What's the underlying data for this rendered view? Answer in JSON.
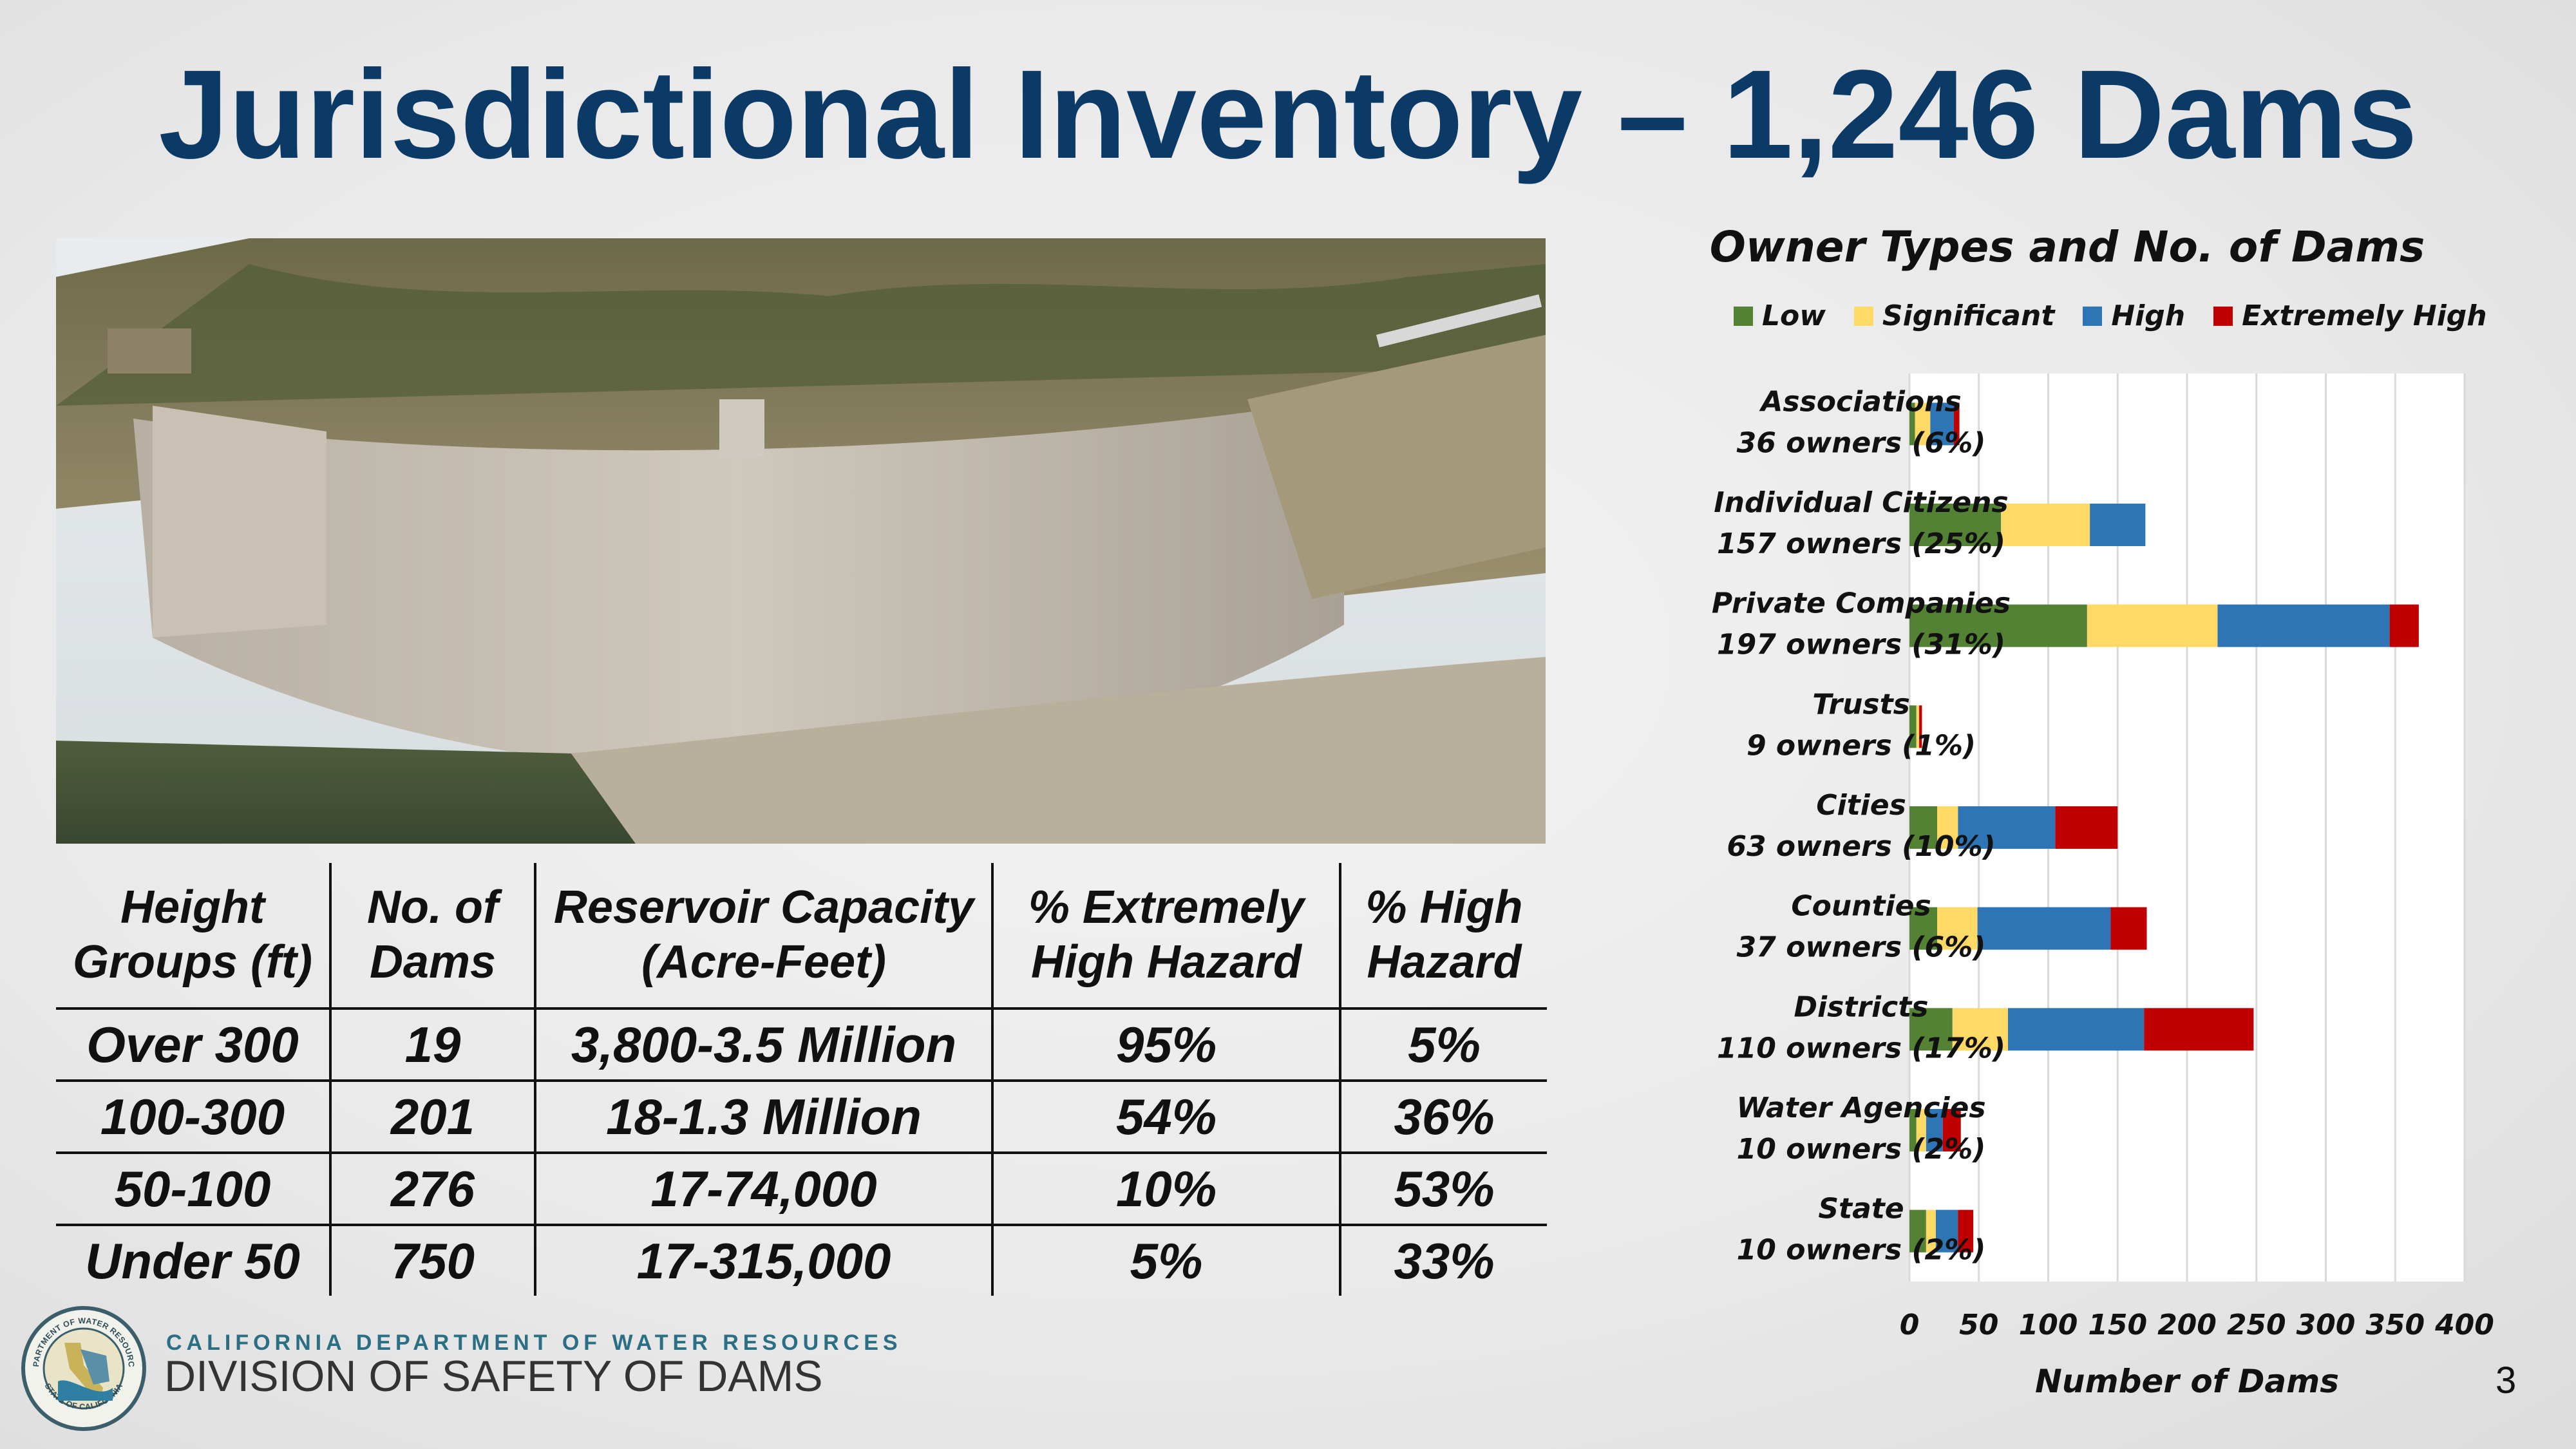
{
  "slide": {
    "title": "Jurisdictional Inventory – 1,246 Dams",
    "number": "3"
  },
  "photo": {
    "description_icon": "concrete-arch-dam-photo"
  },
  "table": {
    "headers": [
      "Height Groups (ft)",
      "No. of Dams",
      "Reservoir Capacity (Acre-Feet)",
      "% Extremely High Hazard",
      "% High Hazard"
    ],
    "rows": [
      [
        "Over 300",
        "19",
        "3,800-3.5 Million",
        "95%",
        "5%"
      ],
      [
        "100-300",
        "201",
        "18-1.3 Million",
        "54%",
        "36%"
      ],
      [
        "50-100",
        "276",
        "17-74,000",
        "10%",
        "53%"
      ],
      [
        "Under 50",
        "750",
        "17-315,000",
        "5%",
        "33%"
      ]
    ]
  },
  "footer": {
    "org_line1": "CALIFORNIA DEPARTMENT OF WATER RESOURCES",
    "org_line2": "DIVISION OF SAFETY OF DAMS",
    "seal_text_top": "DEPARTMENT OF WATER RESOURCES",
    "seal_text_bottom": "STATE OF CALIFORNIA"
  },
  "chart_data": {
    "type": "bar",
    "orientation": "horizontal",
    "stacked": true,
    "title": "Owner Types and No. of Dams",
    "xlabel": "Number of Dams",
    "ylabel": "",
    "xlim": [
      0,
      400
    ],
    "xticks": [
      0,
      50,
      100,
      150,
      200,
      250,
      300,
      350,
      400
    ],
    "grid": "vertical",
    "legend_position": "top",
    "categories": [
      [
        "Associations",
        "36 owners (6%)"
      ],
      [
        "Individual Citizens",
        "157 owners (25%)"
      ],
      [
        "Private Companies",
        "197 owners (31%)"
      ],
      [
        "Trusts",
        "9 owners (1%)"
      ],
      [
        "Cities",
        "63 owners (10%)"
      ],
      [
        "Counties",
        "37 owners (6%)"
      ],
      [
        "Districts",
        "110 owners (17%)"
      ],
      [
        "Water Agencies",
        "10 owners (2%)"
      ],
      [
        "State",
        "10 owners (2%)"
      ]
    ],
    "series": [
      {
        "name": "Low",
        "color": "#548235",
        "values": [
          4,
          66,
          128,
          5,
          20,
          20,
          31,
          5,
          12
        ]
      },
      {
        "name": "Significant",
        "color": "#ffd966",
        "values": [
          11,
          64,
          94,
          2,
          15,
          29,
          40,
          7,
          7
        ]
      },
      {
        "name": "High",
        "color": "#2e75b6",
        "values": [
          17,
          40,
          124,
          0,
          70,
          96,
          98,
          12,
          16
        ]
      },
      {
        "name": "Extremely High",
        "color": "#c00000",
        "values": [
          4,
          0,
          21,
          2,
          45,
          26,
          79,
          13,
          11
        ]
      }
    ]
  }
}
